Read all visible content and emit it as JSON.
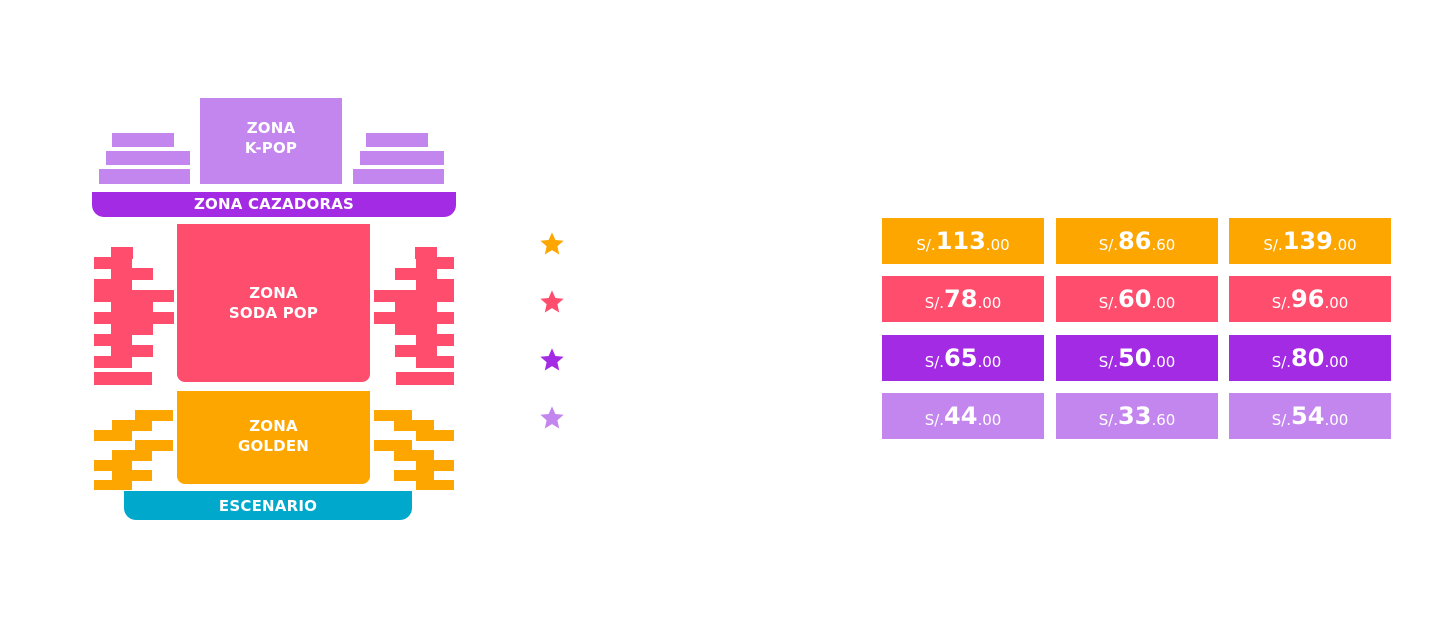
{
  "zones": {
    "kpop": {
      "line1": "ZONA",
      "line2": "K-POP"
    },
    "cazadoras": "ZONA CAZADORAS",
    "sodapop": {
      "line1": "ZONA",
      "line2": "SODA POP"
    },
    "golden": {
      "line1": "ZONA",
      "line2": "GOLDEN"
    },
    "escenario": "ESCENARIO"
  },
  "colors": {
    "gold": "#fea600",
    "pink": "#ff4d6d",
    "purple": "#a32be3",
    "lilac": "#c386ee",
    "teal": "#00a8cc"
  },
  "price_rows": [
    {
      "star_icon": "star-icon",
      "color": "#fea600",
      "prices": [
        {
          "currency": "S/.",
          "integer": "113",
          "decimal": ".00"
        },
        {
          "currency": "S/.",
          "integer": "86",
          "decimal": ".60"
        },
        {
          "currency": "S/.",
          "integer": "139",
          "decimal": ".00"
        }
      ]
    },
    {
      "star_icon": "star-icon",
      "color": "#ff4d6d",
      "prices": [
        {
          "currency": "S/.",
          "integer": "78",
          "decimal": ".00"
        },
        {
          "currency": "S/.",
          "integer": "60",
          "decimal": ".00"
        },
        {
          "currency": "S/.",
          "integer": "96",
          "decimal": ".00"
        }
      ]
    },
    {
      "star_icon": "star-icon",
      "color": "#a32be3",
      "prices": [
        {
          "currency": "S/.",
          "integer": "65",
          "decimal": ".00"
        },
        {
          "currency": "S/.",
          "integer": "50",
          "decimal": ".00"
        },
        {
          "currency": "S/.",
          "integer": "80",
          "decimal": ".00"
        }
      ]
    },
    {
      "star_icon": "star-icon",
      "color": "#c386ee",
      "prices": [
        {
          "currency": "S/.",
          "integer": "44",
          "decimal": ".00"
        },
        {
          "currency": "S/.",
          "integer": "33",
          "decimal": ".60"
        },
        {
          "currency": "S/.",
          "integer": "54",
          "decimal": ".00"
        }
      ]
    }
  ]
}
